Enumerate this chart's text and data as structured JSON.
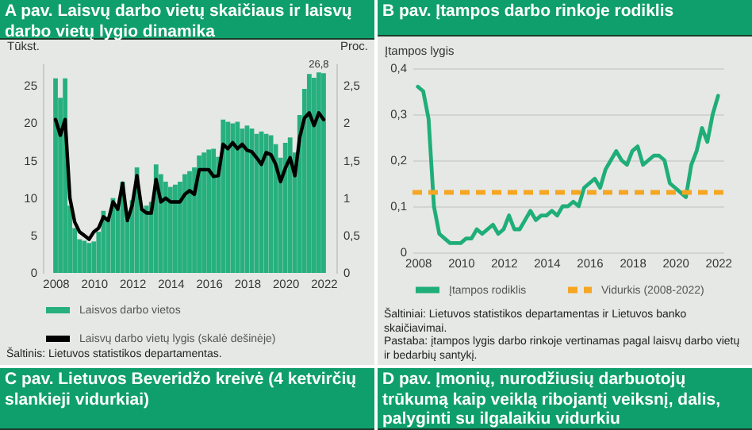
{
  "chart_data": [
    {
      "type": "bar",
      "title": "A pav. Laisvų darbo vietų skaičiaus ir laisvų darbo vietų lygio dinamika",
      "ylabel": "Tūkst.",
      "y2label": "Proc.",
      "annotations": [
        "Šaltinis: Lietuvos statistikos departamentas."
      ],
      "x": [
        2008,
        2008.25,
        2008.5,
        2008.75,
        2009,
        2009.25,
        2009.5,
        2009.75,
        2010,
        2010.25,
        2010.5,
        2010.75,
        2011,
        2011.25,
        2011.5,
        2011.75,
        2012,
        2012.25,
        2012.5,
        2012.75,
        2013,
        2013.25,
        2013.5,
        2013.75,
        2014,
        2014.25,
        2014.5,
        2014.75,
        2015,
        2015.25,
        2015.5,
        2015.75,
        2016,
        2016.25,
        2016.5,
        2016.75,
        2017,
        2017.25,
        2017.5,
        2017.75,
        2018,
        2018.25,
        2018.5,
        2018.75,
        2019,
        2019.25,
        2019.5,
        2019.75,
        2020,
        2020.25,
        2020.5,
        2020.75,
        2021,
        2021.25,
        2021.5,
        2021.75,
        2022
      ],
      "series": [
        {
          "name": "Laisvos darbo vietos",
          "color": "#27b07e",
          "values": [
            26,
            23.4,
            26,
            9,
            6,
            4.5,
            4.3,
            4,
            4.2,
            5.5,
            8.3,
            7.5,
            10,
            8.6,
            12.2,
            7,
            9.7,
            14.1,
            8.6,
            9,
            9.5,
            14.5,
            13.2,
            12.2,
            11.5,
            11.8,
            12.2,
            13.2,
            13.6,
            14.1,
            15.7,
            16.1,
            16.5,
            16.6,
            15.5,
            20.5,
            20.2,
            20,
            20.2,
            19.3,
            19.7,
            19.3,
            18.6,
            18.9,
            18.6,
            18.4,
            17.2,
            15.4,
            17.4,
            18.1,
            16.1,
            21.1,
            24.6,
            26.6,
            26.1,
            26.8,
            26.7
          ],
          "value_labels": [
            null,
            null,
            null,
            null,
            null,
            null,
            null,
            null,
            null,
            null,
            null,
            null,
            null,
            null,
            null,
            null,
            null,
            null,
            null,
            null,
            null,
            null,
            null,
            null,
            null,
            null,
            null,
            null,
            null,
            null,
            null,
            null,
            null,
            null,
            null,
            null,
            null,
            null,
            null,
            null,
            null,
            null,
            null,
            null,
            null,
            null,
            null,
            null,
            null,
            null,
            null,
            null,
            null,
            null,
            null,
            "26,8",
            null
          ]
        },
        {
          "name": "Laisvų darbo vietų lygis (skalė dešinėje)",
          "type": "line",
          "axis": "y2",
          "color": "#000000",
          "values": [
            2.05,
            1.84,
            2.05,
            1.0,
            0.68,
            0.55,
            0.5,
            0.45,
            0.55,
            0.6,
            0.75,
            0.7,
            0.95,
            0.85,
            1.2,
            0.7,
            0.9,
            1.3,
            0.85,
            0.8,
            0.8,
            1.25,
            0.95,
            1.0,
            0.95,
            0.95,
            0.95,
            1.05,
            1.1,
            1.05,
            1.38,
            1.38,
            1.38,
            1.29,
            1.3,
            1.72,
            1.66,
            1.74,
            1.66,
            1.72,
            1.64,
            1.62,
            1.54,
            1.45,
            1.61,
            1.58,
            1.45,
            1.22,
            1.4,
            1.54,
            1.3,
            1.81,
            2.07,
            2.14,
            1.97,
            2.14,
            2.05
          ]
        }
      ],
      "xlim": [
        2007.75,
        2022.25
      ],
      "xticks": [
        2008,
        2010,
        2012,
        2014,
        2016,
        2018,
        2020,
        2022
      ],
      "ylim": [
        0,
        28
      ],
      "yticks": [
        0,
        5,
        10,
        15,
        20,
        25
      ],
      "y2lim": [
        0,
        2.8
      ],
      "y2ticks": [
        0,
        {
          "value": 0.5,
          "label": "0,5"
        },
        1,
        {
          "value": 1.5,
          "label": "1,5"
        },
        2,
        {
          "value": 2.5,
          "label": "2,5"
        }
      ],
      "legend": "bottom",
      "grid": false
    },
    {
      "type": "line",
      "title": "B pav. Įtampos darbo rinkoje rodiklis",
      "ylabel": "Įtampos lygis",
      "annotations": [
        "Šaltiniai: Lietuvos statistikos departamentas ir Lietuvos banko skaičiavimai.",
        "Pastaba: įtampos lygis darbo rinkoje vertinamas pagal laisvų darbo vietų ir bedarbių santykį."
      ],
      "x": [
        2008,
        2008.25,
        2008.5,
        2008.75,
        2009,
        2009.25,
        2009.5,
        2009.75,
        2010,
        2010.25,
        2010.5,
        2010.75,
        2011,
        2011.25,
        2011.5,
        2011.75,
        2012,
        2012.25,
        2012.5,
        2012.75,
        2013,
        2013.25,
        2013.5,
        2013.75,
        2014,
        2014.25,
        2014.5,
        2014.75,
        2015,
        2015.25,
        2015.5,
        2015.75,
        2016,
        2016.25,
        2016.5,
        2016.75,
        2017,
        2017.25,
        2017.5,
        2017.75,
        2018,
        2018.25,
        2018.5,
        2018.75,
        2019,
        2019.25,
        2019.5,
        2019.75,
        2020,
        2020.25,
        2020.5,
        2020.75,
        2021,
        2021.25,
        2021.5,
        2021.75,
        2022
      ],
      "series": [
        {
          "name": "Įtampos rodiklis",
          "color": "#1fae78",
          "values": [
            0.36,
            0.35,
            0.29,
            0.1,
            0.04,
            0.03,
            0.02,
            0.02,
            0.02,
            0.03,
            0.03,
            0.05,
            0.04,
            0.05,
            0.06,
            0.04,
            0.05,
            0.08,
            0.05,
            0.05,
            0.07,
            0.09,
            0.07,
            0.08,
            0.08,
            0.09,
            0.08,
            0.1,
            0.1,
            0.11,
            0.1,
            0.14,
            0.15,
            0.16,
            0.14,
            0.18,
            0.2,
            0.22,
            0.2,
            0.19,
            0.22,
            0.23,
            0.19,
            0.2,
            0.21,
            0.21,
            0.2,
            0.15,
            0.14,
            0.13,
            0.12,
            0.19,
            0.22,
            0.27,
            0.24,
            0.3,
            0.34
          ]
        }
      ],
      "ref_lines": [
        {
          "axis": "y",
          "value": 0.13,
          "label": "Vidurkis (2008-2022)",
          "color": "#f5a623",
          "line_style": "dashed"
        }
      ],
      "xlim": [
        2007.75,
        2022.25
      ],
      "xticks": [
        2008,
        2010,
        2012,
        2014,
        2016,
        2018,
        2020,
        2022
      ],
      "ylim": [
        0,
        0.4
      ],
      "yticks": [
        0,
        {
          "value": 0.1,
          "label": "0,1"
        },
        {
          "value": 0.2,
          "label": "0,2"
        },
        {
          "value": 0.3,
          "label": "0,3"
        },
        {
          "value": 0.4,
          "label": "0,4"
        }
      ],
      "legend": "bottom",
      "grid": "y"
    },
    {
      "type": "other",
      "title": "C pav. Lietuvos Beveridžo kreivė (4 ketvirčių slankieji vidurkiai)"
    },
    {
      "type": "other",
      "title": "D pav. Įmonių, nurodžiusių darbuotojų trūkumą kaip veiklą ribojantį veiksnį, dalis, palyginti su ilgalaikiu vidurkiu"
    }
  ]
}
